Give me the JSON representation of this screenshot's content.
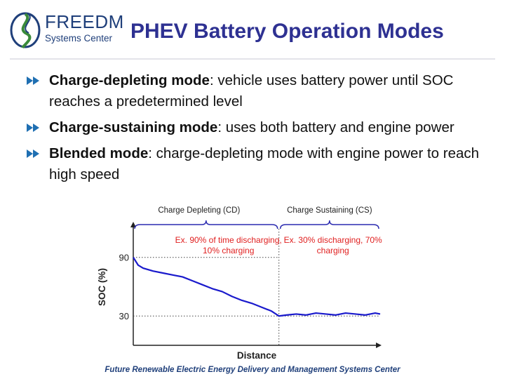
{
  "logo": {
    "name_line1": "FREEDM",
    "name_line2": "Systems Center",
    "colors": {
      "navy": "#1f3f7a",
      "green": "#3a8a3a"
    }
  },
  "slide": {
    "title": "PHEV Battery Operation Modes",
    "title_color": "#2e3192",
    "bullets": [
      {
        "term": "Charge-depleting mode",
        "description": ": vehicle uses battery power until SOC reaches a predetermined level"
      },
      {
        "term": "Charge-sustaining mode",
        "description": ": uses both battery and engine power"
      },
      {
        "term": "Blended mode",
        "description": ": charge-depleting mode with engine power to reach high speed"
      }
    ],
    "bullet_icon": "arrow-bullet-icon",
    "footer": "Future Renewable Electric Energy Delivery and Management Systems Center"
  },
  "chart_data": {
    "type": "line",
    "xlabel": "Distance",
    "ylabel": "SOC (%)",
    "yticks": [
      "90",
      "30"
    ],
    "ylim": [
      0,
      125
    ],
    "xlim": [
      0,
      100
    ],
    "regions": [
      {
        "label": "Charge Depleting (CD)",
        "x_range": [
          0,
          59
        ]
      },
      {
        "label": "Charge Sustaining (CS)",
        "x_range": [
          59,
          100
        ]
      }
    ],
    "annotations": [
      {
        "text_lines": [
          "Ex. 90% of time discharging,",
          "10% charging"
        ]
      },
      {
        "text_lines": [
          "Ex. 30% discharging, 70%",
          "charging"
        ]
      }
    ],
    "annotation_color": "#e02020",
    "line_color": "#1a1acc",
    "series": [
      {
        "x": [
          0,
          2,
          4,
          8,
          12,
          16,
          20,
          24,
          28,
          32,
          36,
          40,
          44,
          48,
          52,
          56,
          59,
          62,
          66,
          70,
          74,
          78,
          82,
          86,
          90,
          94,
          98,
          100
        ],
        "values": [
          90,
          82,
          79,
          76,
          74,
          72,
          70,
          66,
          62,
          58,
          55,
          50,
          46,
          43,
          39,
          35,
          30,
          31,
          32,
          31,
          33,
          32,
          31,
          33,
          32,
          31,
          33,
          32
        ]
      }
    ]
  }
}
